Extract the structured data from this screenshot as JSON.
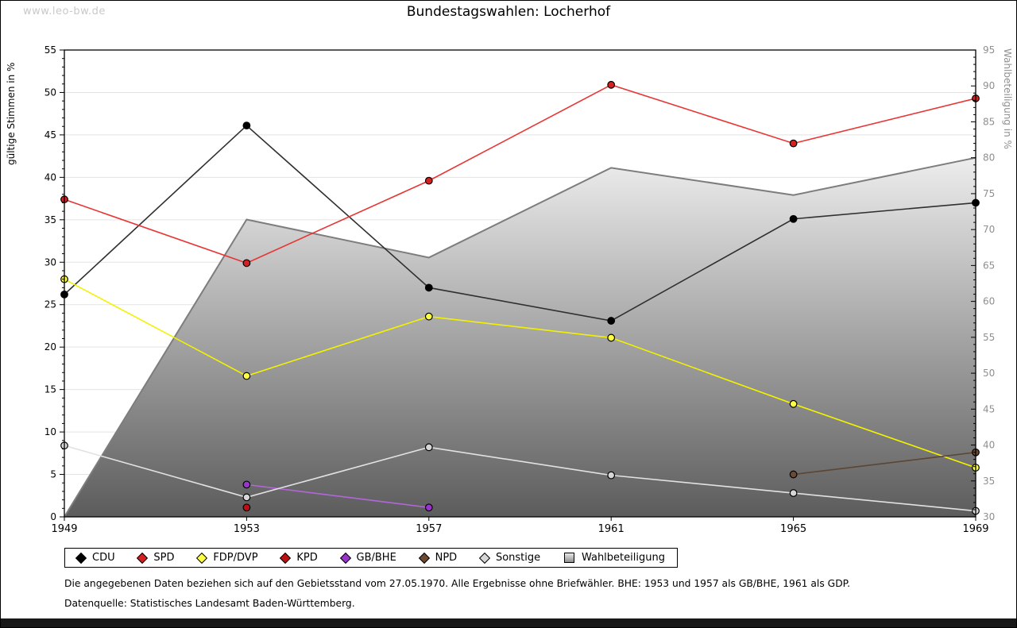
{
  "watermark": "www.leo-bw.de",
  "title": "Bundestagswahlen: Locherhof",
  "footnotes": {
    "line1": "Die angegebenen Daten beziehen sich auf den Gebietsstand vom 27.05.1970. Alle Ergebnisse ohne Briefwähler. BHE: 1953 und 1957 als GB/BHE, 1961 als GDP.",
    "line2": "Datenquelle: Statistisches Landesamt Baden-Württemberg."
  },
  "chart_data": {
    "type": "line",
    "x": [
      1949,
      1953,
      1957,
      1961,
      1965,
      1969
    ],
    "ylabel_left": "gültige Stimmen in %",
    "ylabel_right": "Wahlbeteiligung in %",
    "ylim_left": [
      0,
      55
    ],
    "ylim_right": [
      30,
      95
    ],
    "ytick_major": 5,
    "ytick_minor": 1,
    "grid": true,
    "legend_position": "bottom",
    "series": [
      {
        "name": "CDU",
        "axis": "left",
        "line_color": "#303030",
        "marker_color": "#000000",
        "values": [
          26.2,
          46.1,
          27.0,
          23.1,
          35.1,
          37.0
        ]
      },
      {
        "name": "SPD",
        "axis": "left",
        "line_color": "#e83535",
        "marker_color": "#d42020",
        "values": [
          37.4,
          29.9,
          39.6,
          50.9,
          44.0,
          49.3
        ]
      },
      {
        "name": "FDP/DVP",
        "axis": "left",
        "line_color": "#f2f200",
        "marker_color": "#ffff42",
        "values": [
          28.0,
          16.6,
          23.6,
          21.1,
          13.3,
          5.8
        ]
      },
      {
        "name": "KPD",
        "axis": "left",
        "line_color": "#c00000",
        "marker_color": "#c00f12",
        "values": [
          null,
          1.1,
          null,
          null,
          null,
          null
        ]
      },
      {
        "name": "GB/BHE",
        "axis": "left",
        "line_color": "#b266d9",
        "marker_color": "#9933cc",
        "values": [
          null,
          3.8,
          1.1,
          null,
          null,
          null
        ]
      },
      {
        "name": "NPD",
        "axis": "left",
        "line_color": "#5c4532",
        "marker_color": "#6b4a34",
        "values": [
          null,
          null,
          null,
          null,
          5.0,
          7.6
        ]
      },
      {
        "name": "Sonstige",
        "axis": "left",
        "line_color": "#e2e2e2",
        "marker_color": "#d6d6d6",
        "values": [
          8.4,
          2.3,
          8.2,
          4.9,
          2.8,
          0.7
        ]
      }
    ],
    "area_series": {
      "name": "Wahlbeteiligung",
      "axis": "right",
      "values": [
        30,
        71.4,
        66.1,
        78.6,
        74.8,
        80.0
      ],
      "stroke_color": "#7d7d7d",
      "fill_top": "#ededed",
      "fill_bottom": "#5c5c5c"
    },
    "colors": {
      "grid": "#e3e3e3",
      "axis": "#000000",
      "right_tick_label": "#8f8f8f"
    }
  }
}
